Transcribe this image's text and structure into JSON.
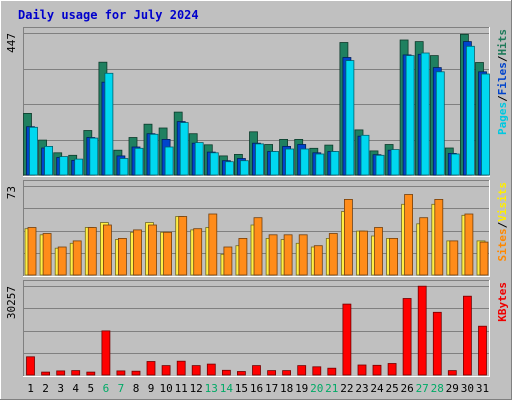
{
  "chart_data": {
    "type": "bar",
    "title": "Daily usage for July 2024",
    "days": [
      "1",
      "2",
      "3",
      "4",
      "5",
      "6",
      "7",
      "8",
      "9",
      "10",
      "11",
      "12",
      "13",
      "14",
      "15",
      "16",
      "17",
      "18",
      "19",
      "20",
      "21",
      "22",
      "23",
      "24",
      "25",
      "26",
      "27",
      "28",
      "29",
      "30",
      "31"
    ],
    "weekend_days": [
      "6",
      "7",
      "13",
      "14",
      "20",
      "21",
      "27",
      "28"
    ],
    "panels": [
      {
        "id": "hits_files_pages",
        "ymax_label": "447",
        "ymax": 447,
        "grid": true,
        "legend": [
          {
            "text": "Pages",
            "color": "#00c8e0"
          },
          {
            "text": "/",
            "color": "#000000"
          },
          {
            "text": "Files",
            "color": "#0044cc"
          },
          {
            "text": "/",
            "color": "#000000"
          },
          {
            "text": "Hits",
            "color": "#1f7a5a"
          }
        ],
        "series": [
          {
            "name": "Hits",
            "color": "#1f8060",
            "values": [
              194,
              110,
              70,
              62,
              140,
              355,
              78,
              118,
              160,
              148,
              198,
              130,
              95,
              60,
              65,
              136,
              96,
              112,
              112,
              84,
              94,
              417,
              142,
              76,
              96,
              425,
              420,
              376,
              85,
              443,
              354
            ]
          },
          {
            "name": "Files",
            "color": "#0044cc",
            "values": [
              152,
              85,
              55,
              46,
              118,
              292,
              60,
              88,
              130,
              112,
              168,
              100,
              72,
              45,
              52,
              100,
              74,
              90,
              96,
              70,
              74,
              370,
              122,
              64,
              78,
              378,
              380,
              338,
              68,
              420,
              325
            ]
          },
          {
            "name": "Pages",
            "color": "#00d8f0",
            "values": [
              150,
              90,
              58,
              50,
              116,
              320,
              52,
              84,
              128,
              88,
              165,
              102,
              70,
              42,
              45,
              98,
              74,
              82,
              82,
              66,
              74,
              360,
              125,
              62,
              80,
              376,
              384,
              325,
              66,
              405,
              318
            ]
          }
        ]
      },
      {
        "id": "visits_sites",
        "ymax_label": "73",
        "ymax": 73,
        "grid": true,
        "legend": [
          {
            "text": "Sites",
            "color": "#ff8800"
          },
          {
            "text": "/",
            "color": "#000000"
          },
          {
            "text": "Visits",
            "color": "#ffee00"
          }
        ],
        "series": [
          {
            "name": "Visits",
            "color": "#ffee44",
            "values": [
              38,
              33,
              22,
              26,
              39,
              43,
              29,
              35,
              43,
              35,
              48,
              37,
              39,
              17,
              24,
              41,
              30,
              29,
              26,
              23,
              30,
              52,
              36,
              32,
              30,
              58,
              42,
              58,
              28,
              49,
              28
            ]
          },
          {
            "name": "Sites",
            "color": "#ff8c1a",
            "values": [
              39,
              34,
              23,
              28,
              39,
              41,
              30,
              37,
              41,
              35,
              48,
              38,
              50,
              23,
              30,
              47,
              33,
              33,
              33,
              24,
              34,
              62,
              36,
              39,
              30,
              66,
              47,
              62,
              28,
              50,
              27
            ]
          }
        ]
      },
      {
        "id": "kbytes",
        "ymax_label": "30257",
        "ymax": 30257,
        "grid": true,
        "legend": [
          {
            "text": "KBytes",
            "color": "#ee0000"
          }
        ],
        "series": [
          {
            "name": "KBytes",
            "color": "#ff0000",
            "values": [
              6200,
              1000,
              1400,
              1500,
              1000,
              15000,
              1400,
              1300,
              4600,
              3200,
              4700,
              3200,
              3700,
              1600,
              1200,
              3200,
              1500,
              1500,
              3200,
              2800,
              2300,
              24100,
              3400,
              3300,
              3900,
              26000,
              30200,
              21300,
              1500,
              26800,
              16600
            ]
          }
        ]
      }
    ]
  }
}
